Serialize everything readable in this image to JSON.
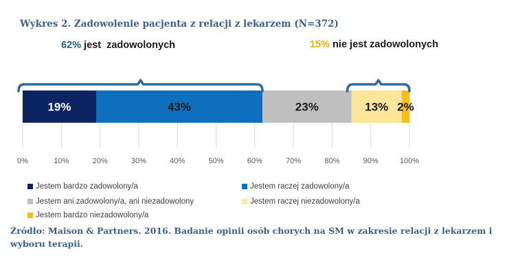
{
  "title": "Wykres 2. Zadowolenie pacjenta z relacji z lekarzem (N=372)",
  "summary_left": {
    "pct": "62%",
    "text": " jest  zadowolonych"
  },
  "summary_right": {
    "pct": "15%",
    "text": " nie jest zadowolonych"
  },
  "source": "Źródło: Maison & Partners. 2016. Badanie opinii osób chorych na SM w zakresie relacji z lekarzem i wyboru terapii.",
  "colors": {
    "dark_navy": "#0c2461",
    "blue": "#0e6fbe",
    "gray": "#bfbfbf",
    "light_yellow": "#fde59a",
    "yellow": "#fbbd10",
    "bracket": "#2f68a6"
  },
  "chart_data": {
    "type": "bar",
    "orientation": "horizontal",
    "stacked": true,
    "categories": [
      ""
    ],
    "series": [
      {
        "name": "Jestem bardzo zadowolony/a",
        "values": [
          19
        ],
        "label": "19%",
        "color": "#0c2461",
        "label_color": "#ffffff"
      },
      {
        "name": "Jestem raczej zadowolony/a",
        "values": [
          43
        ],
        "label": "43%",
        "color": "#0e6fbe",
        "label_color": "#1a1a1a"
      },
      {
        "name": "Jestem ani zadowolony/a, ani niezadowolony",
        "values": [
          23
        ],
        "label": "23%",
        "color": "#bfbfbf",
        "label_color": "#1a1a1a"
      },
      {
        "name": "Jestem raczej niezadowolony/a",
        "values": [
          13
        ],
        "label": "13%",
        "color": "#fde59a",
        "label_color": "#1a1a1a"
      },
      {
        "name": "Jestem bardzo niezadowolony/a",
        "values": [
          2
        ],
        "label": "2%",
        "color": "#fbbd10",
        "label_color": "#1a1a1a"
      }
    ],
    "xlim": [
      0,
      100
    ],
    "xticks": [
      "0%",
      "10%",
      "20%",
      "30%",
      "40%",
      "50%",
      "60%",
      "70%",
      "80%",
      "90%",
      "100%"
    ],
    "grid": true,
    "legend": "bottom",
    "brackets": [
      {
        "from": 0,
        "to": 62
      },
      {
        "from": 85,
        "to": 100
      }
    ]
  }
}
